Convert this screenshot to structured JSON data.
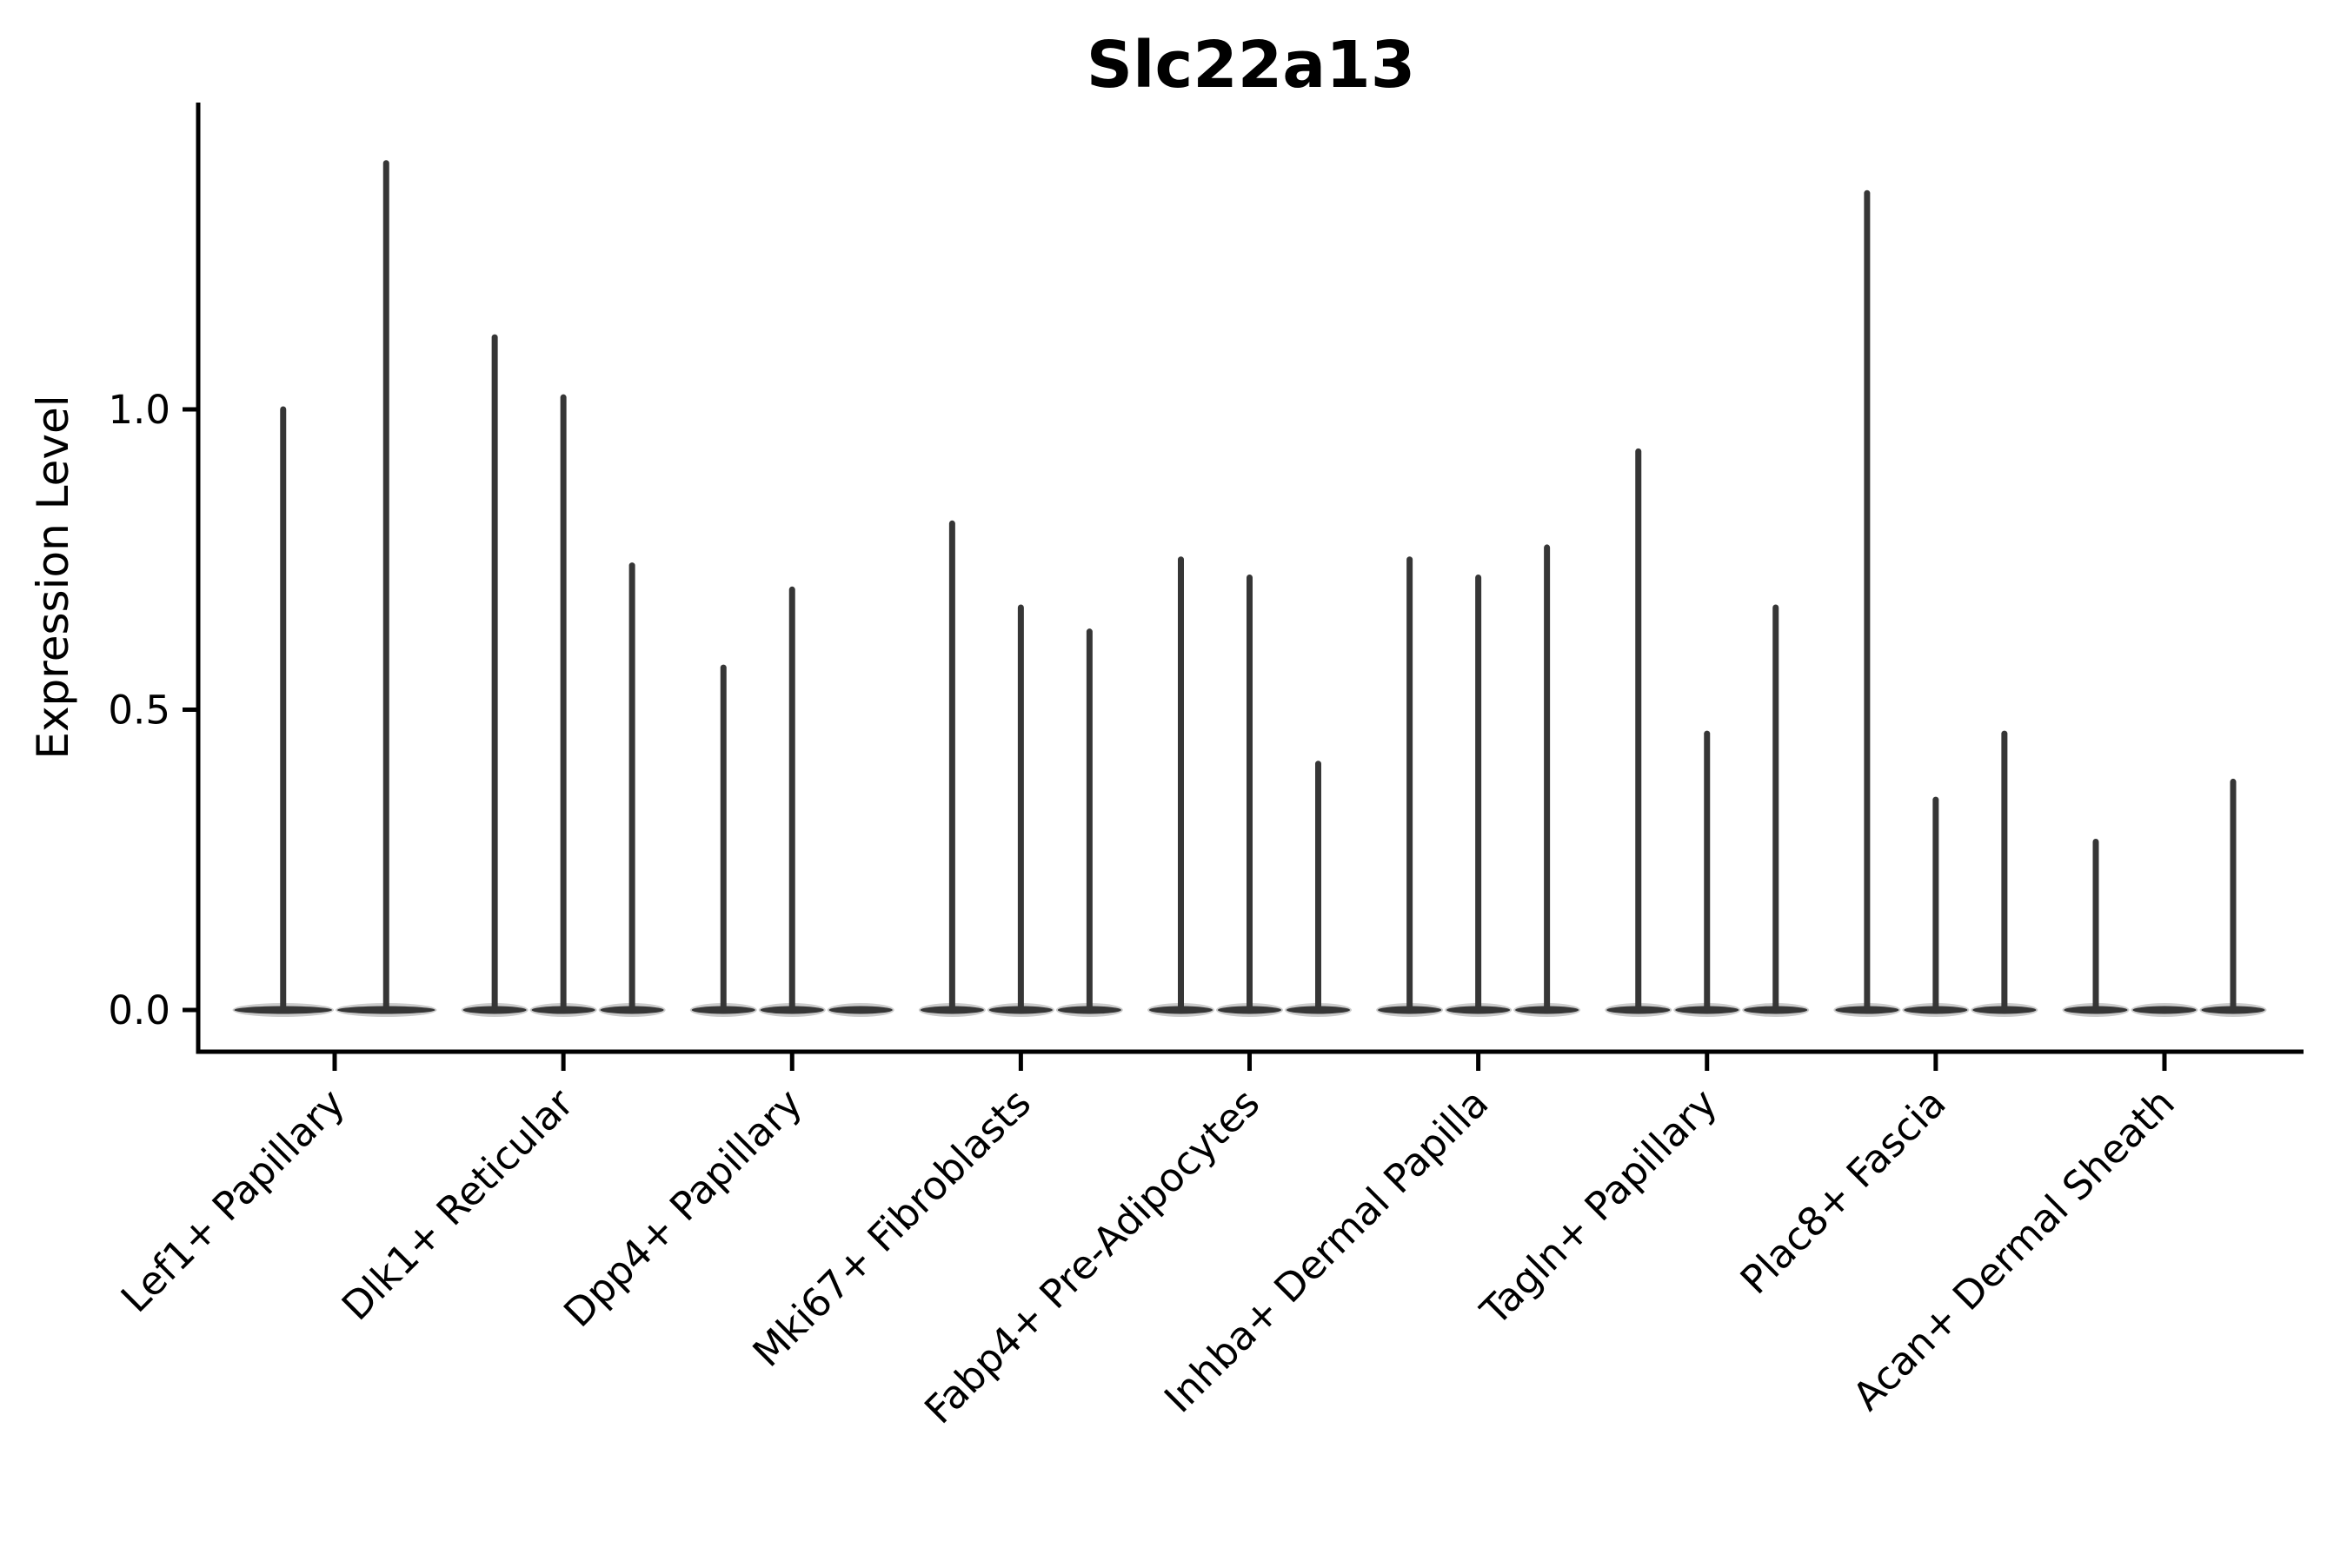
{
  "chart_data": {
    "type": "violin",
    "title": "Slc22a13",
    "xlabel": "",
    "ylabel": "Expression Level",
    "yticks": [
      "0.0",
      "0.5",
      "1.0"
    ],
    "ytick_values": [
      0.0,
      0.5,
      1.0
    ],
    "ylim": [
      -0.07,
      1.51
    ],
    "grid": false,
    "legend": "none",
    "description": "Monochrome violin plot of Slc22a13 expression; each cell-type category holds 2-3 near-zero-inflated violins (flat base at 0 with a thin density spike up to the max expressed value).",
    "categories": [
      "Lef1+ Papillary",
      "Dlk1+ Reticular",
      "Dpp4+ Papillary",
      "Mki67+ Fibroblasts",
      "Fabp4+ Pre-Adipocytes",
      "Inhba+ Dermal Papilla",
      "Tagln+ Papillary",
      "Plac8+ Fascia",
      "Acan+ Dermal Sheath"
    ],
    "groups": [
      {
        "category": "Lef1+ Papillary",
        "violin_maxima": [
          1.0,
          1.41
        ]
      },
      {
        "category": "Dlk1+ Reticular",
        "violin_maxima": [
          1.12,
          1.02,
          0.74
        ]
      },
      {
        "category": "Dpp4+ Papillary",
        "violin_maxima": [
          0.57,
          0.7,
          0.0
        ]
      },
      {
        "category": "Mki67+ Fibroblasts",
        "violin_maxima": [
          0.81,
          0.67,
          0.63
        ]
      },
      {
        "category": "Fabp4+ Pre-Adipocytes",
        "violin_maxima": [
          0.75,
          0.72,
          0.41
        ]
      },
      {
        "category": "Inhba+ Dermal Papilla",
        "violin_maxima": [
          0.75,
          0.72,
          0.77
        ]
      },
      {
        "category": "Tagln+ Papillary",
        "violin_maxima": [
          0.93,
          0.46,
          0.67
        ]
      },
      {
        "category": "Plac8+ Fascia",
        "violin_maxima": [
          1.36,
          0.35,
          0.46
        ]
      },
      {
        "category": "Acan+ Dermal Sheath",
        "violin_maxima": [
          0.28,
          0.0,
          0.38
        ]
      }
    ],
    "baseline_value": 0.0,
    "colors": {
      "violin": "#363636",
      "violin_halo": "#9a9a9a",
      "axis": "#000000",
      "text": "#000000",
      "background": "#ffffff"
    }
  }
}
